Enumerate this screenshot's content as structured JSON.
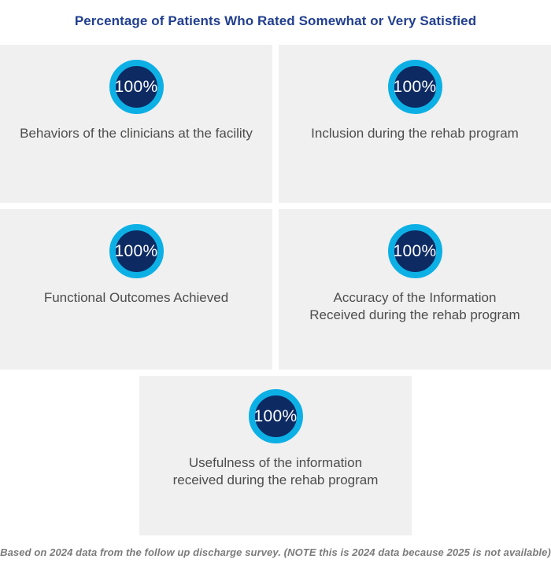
{
  "title": "Percentage of Patients Who Rated Somewhat or Very Satisfied",
  "footnote": "Based on 2024 data from the follow up discharge survey. (NOTE this is 2024 data because 2025 is not available)",
  "panels": [
    {
      "value": "100%",
      "label": "Behaviors of the clinicians at the facility"
    },
    {
      "value": "100%",
      "label": "Inclusion during the rehab program"
    },
    {
      "value": "100%",
      "label": "Functional Outcomes Achieved"
    },
    {
      "value": "100%",
      "label": "Accuracy of the Information\nReceived during the rehab program"
    },
    {
      "value": "100%",
      "label": "Usefulness of the information\nreceived during the rehab program"
    }
  ],
  "colors": {
    "title_navy": "#213f8f",
    "badge_ring_cyan": "#0db0e5",
    "badge_fill_navy": "#0d2a63",
    "badge_text": "#ffffff",
    "label_gray": "#4d4d4d",
    "footnote_gray": "#7b7b7b",
    "panel_background": "#f0f0f1",
    "page_background": "#ffffff"
  },
  "chart_data": {
    "type": "pie",
    "title": "Percentage of Patients Who Rated Somewhat or Very Satisfied",
    "categories": [
      "Behaviors of the clinicians at the facility",
      "Inclusion during the rehab program",
      "Functional Outcomes Achieved",
      "Accuracy of the Information Received during the rehab program",
      "Usefulness of the information received during the rehab program"
    ],
    "values": [
      100,
      100,
      100,
      100,
      100
    ],
    "unit": "%",
    "legend": false,
    "layout": "five circular 100% badges: 2x2 grid of gray panels plus one centered panel below",
    "note": "Based on 2024 data from the follow up discharge survey. (NOTE this is 2024 data because 2025 is not available)"
  }
}
